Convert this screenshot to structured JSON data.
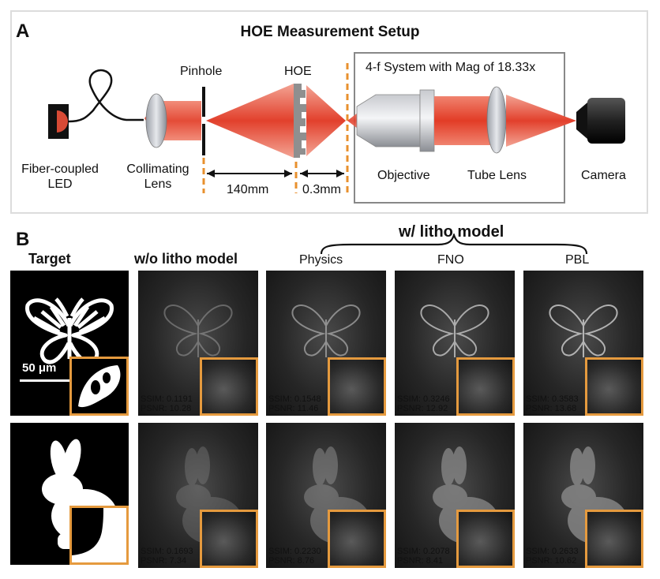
{
  "panelA": {
    "letter": "A",
    "title": "HOE Measurement Setup",
    "labels": {
      "pinhole": "Pinhole",
      "hoe": "HOE",
      "fourf": "4-f System with Mag of 18.33x",
      "led1": "Fiber-coupled",
      "led2": "LED",
      "coll1": "Collimating",
      "coll2": "Lens",
      "dist1": "140mm",
      "dist2": "0.3mm",
      "objective": "Objective",
      "tubelens": "Tube Lens",
      "camera": "Camera"
    }
  },
  "panelB": {
    "letter": "B",
    "group_label": "w/ litho model",
    "columns": {
      "target": "Target",
      "wo": "w/o litho model",
      "physics": "Physics",
      "fno": "FNO",
      "pbl": "PBL"
    },
    "scalebar": "50 μm",
    "rows": [
      {
        "name": "butterfly",
        "metrics": [
          {
            "ssim": "SSIM: 0.1191",
            "psnr": "PSNR: 10.28"
          },
          {
            "ssim": "SSIM: 0.1548",
            "psnr": "PSNR: 11.46"
          },
          {
            "ssim": "SSIM: 0.3246",
            "psnr": "PSNR: 12.92"
          },
          {
            "ssim": "SSIM: 0.3583",
            "psnr": "PSNR: 13.68"
          }
        ]
      },
      {
        "name": "bunny",
        "metrics": [
          {
            "ssim": "SSIM: 0.1693",
            "psnr": "PSNR: 7.34"
          },
          {
            "ssim": "SSIM: 0.2230",
            "psnr": "PSNR: 8.76"
          },
          {
            "ssim": "SSIM: 0.2078",
            "psnr": "PSNR: 8.41"
          },
          {
            "ssim": "SSIM: 0.2633",
            "psnr": "PSNR: 10.62"
          }
        ]
      }
    ]
  },
  "colors": {
    "beam": "#e8553f",
    "orange_accent": "#e59a3e",
    "panel_border": "#dddddd"
  }
}
